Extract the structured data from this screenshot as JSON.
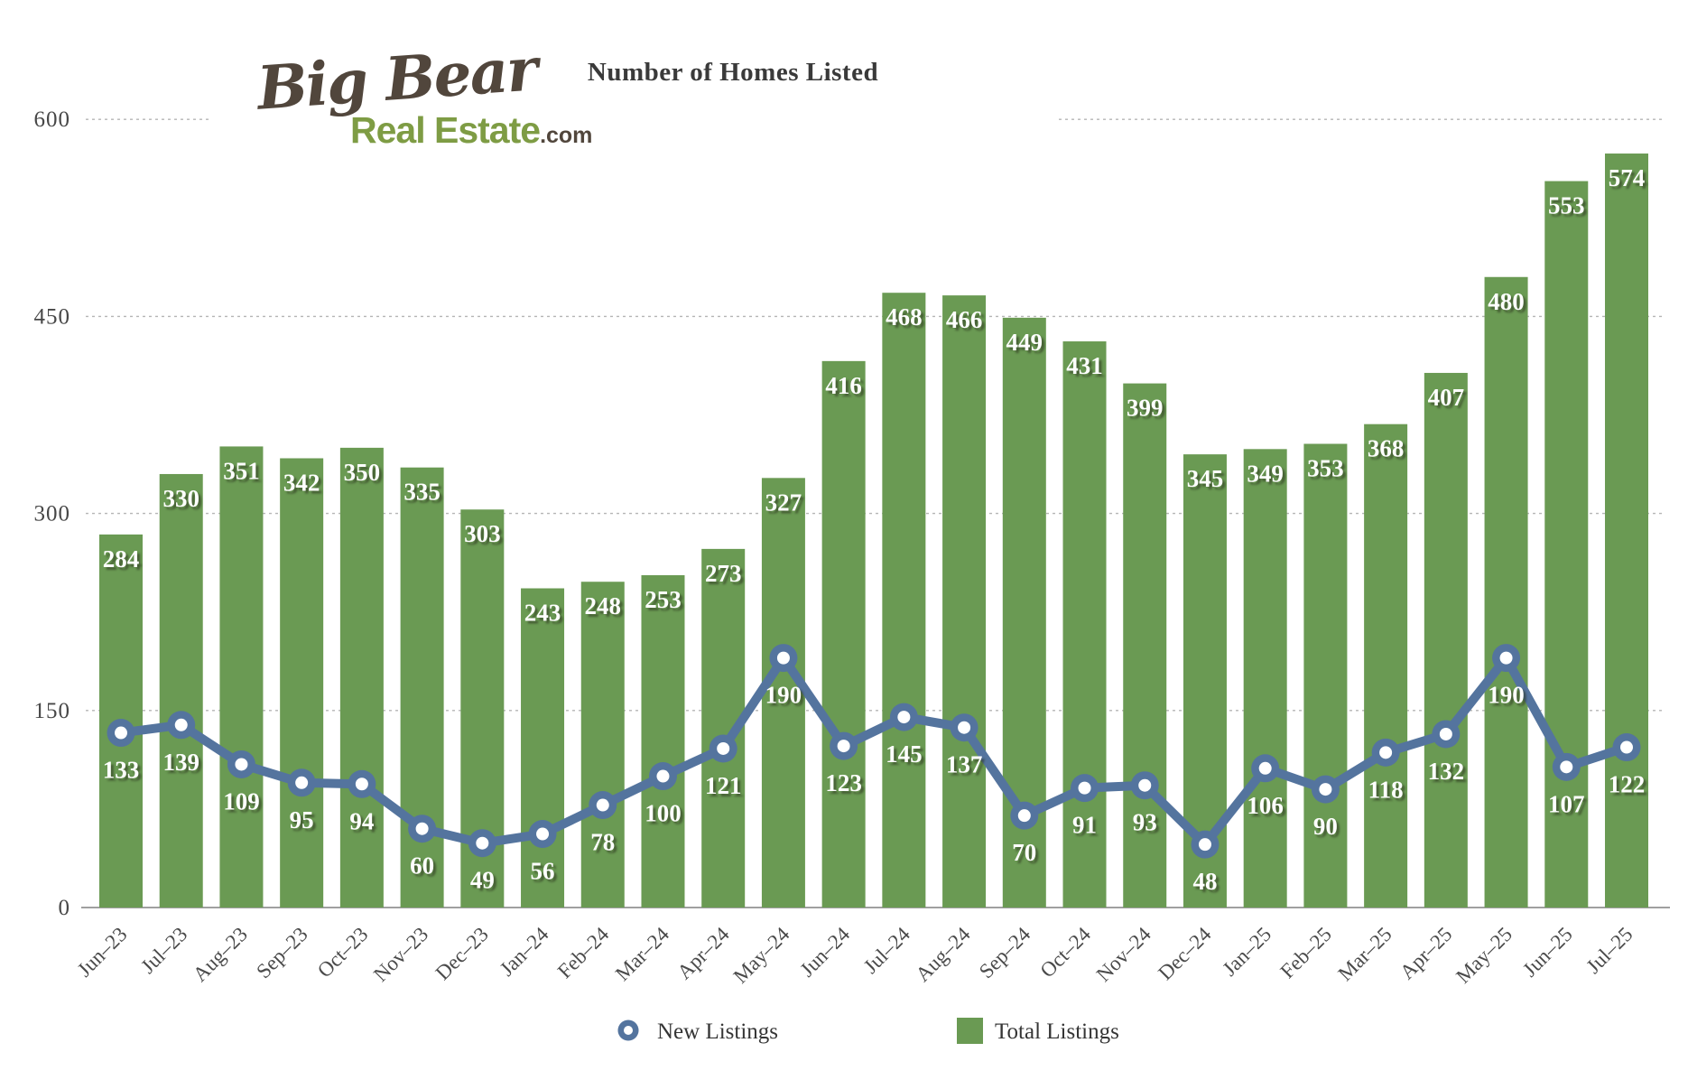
{
  "logo": {
    "script_text": "Big Bear",
    "word": "Real Estate",
    "suffix": ".com"
  },
  "title": "Number of Homes Listed",
  "legend": {
    "new_listings_label": "New Listings",
    "total_listings_label": "Total Listings"
  },
  "colors": {
    "bar": "#6a9a53",
    "line": "#54749e",
    "marker_center": "#ffffff",
    "grid": "#b5b5b5",
    "baseline": "#a0a0a0",
    "logo_brown": "#51463c",
    "logo_green": "#7e9c44"
  },
  "chart_data": {
    "type": "bar+line",
    "title": "Number of Homes Listed",
    "categories": [
      "Jun–23",
      "Jul–23",
      "Aug–23",
      "Sep–23",
      "Oct–23",
      "Nov–23",
      "Dec–23",
      "Jan–24",
      "Feb–24",
      "Mar–24",
      "Apr–24",
      "May–24",
      "Jun–24",
      "Jul–24",
      "Aug–24",
      "Sep–24",
      "Oct–24",
      "Nov–24",
      "Dec–24",
      "Jan–25",
      "Feb–25",
      "Mar–25",
      "Apr–25",
      "May–25",
      "Jun–25",
      "Jul–25"
    ],
    "series": [
      {
        "name": "Total Listings",
        "type": "bar",
        "values": [
          284,
          330,
          351,
          342,
          350,
          335,
          303,
          243,
          248,
          253,
          273,
          327,
          416,
          468,
          466,
          449,
          431,
          399,
          345,
          349,
          353,
          368,
          407,
          480,
          553,
          574
        ]
      },
      {
        "name": "New Listings",
        "type": "line",
        "values": [
          133,
          139,
          109,
          95,
          94,
          60,
          49,
          56,
          78,
          100,
          121,
          190,
          123,
          145,
          137,
          70,
          91,
          93,
          48,
          106,
          90,
          118,
          132,
          190,
          107,
          122
        ]
      }
    ],
    "ylim": [
      0,
      600
    ],
    "yticks": [
      0,
      150,
      300,
      450,
      600
    ],
    "grid": "horizontal-dotted",
    "legend_position": "bottom",
    "data_labels": "shown"
  }
}
